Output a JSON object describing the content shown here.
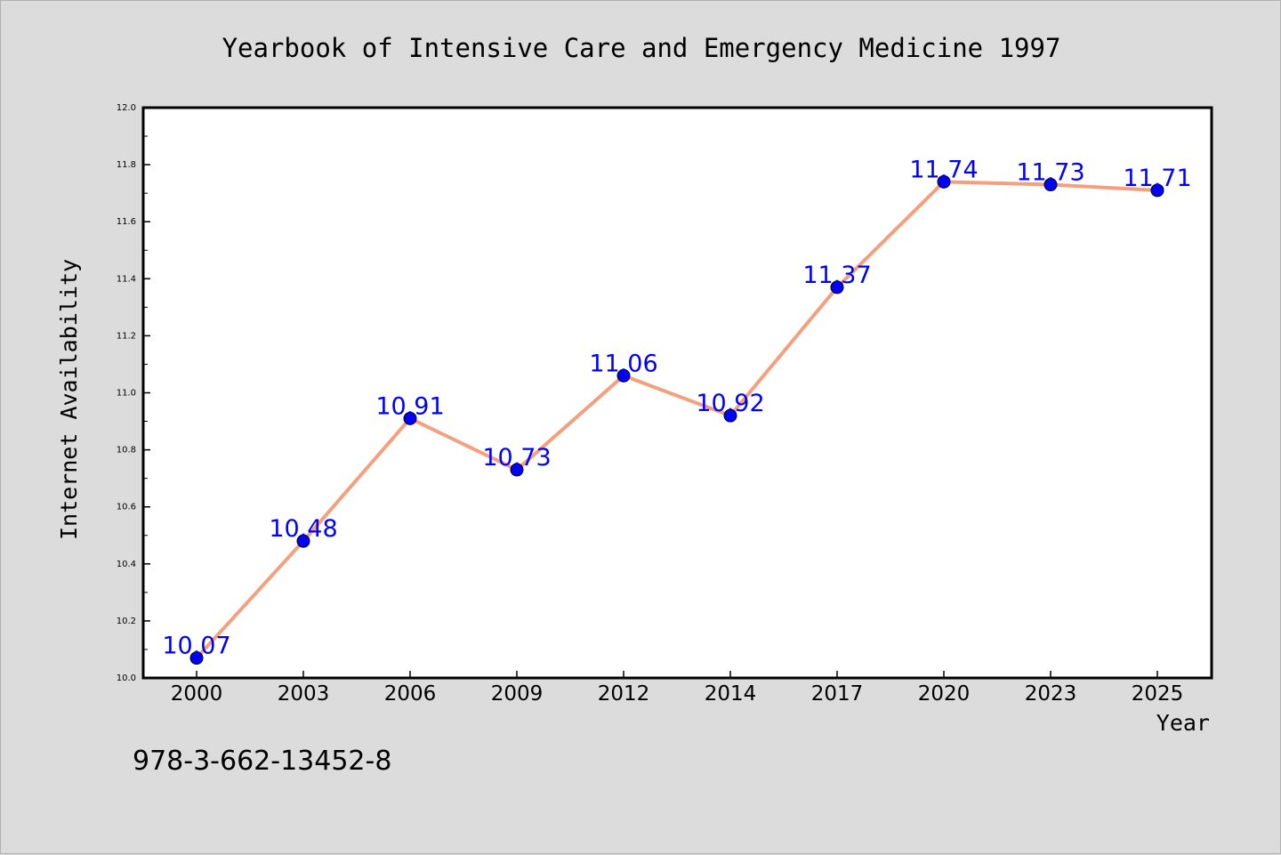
{
  "chart_data": {
    "type": "line",
    "title": "Yearbook of Intensive Care and Emergency Medicine 1997",
    "xlabel": "Year",
    "ylabel": "Internet Availability",
    "categories": [
      "2000",
      "2003",
      "2006",
      "2009",
      "2012",
      "2014",
      "2017",
      "2020",
      "2023",
      "2025"
    ],
    "values": [
      10.07,
      10.48,
      10.91,
      10.73,
      11.06,
      10.92,
      11.37,
      11.74,
      11.73,
      11.71
    ],
    "data_labels": [
      "10.07",
      "10.48",
      "10.91",
      "10.73",
      "11.06",
      "10.92",
      "11.37",
      "11.74",
      "11.73",
      "11.71"
    ],
    "ylim": [
      10.0,
      12.0
    ],
    "yticks": [
      "10.0",
      "10.2",
      "10.4",
      "10.6",
      "10.8",
      "11.0",
      "11.2",
      "11.4",
      "11.6",
      "11.8",
      "12.0"
    ],
    "grid": false,
    "legend": "none",
    "colors": {
      "line": "#f4a07f",
      "marker": "#0000ff",
      "label": "#0000ff",
      "background": "#dcdcdc",
      "plot_area": "#ffffff"
    }
  },
  "footer": {
    "isbn": "978-3-662-13452-8"
  }
}
